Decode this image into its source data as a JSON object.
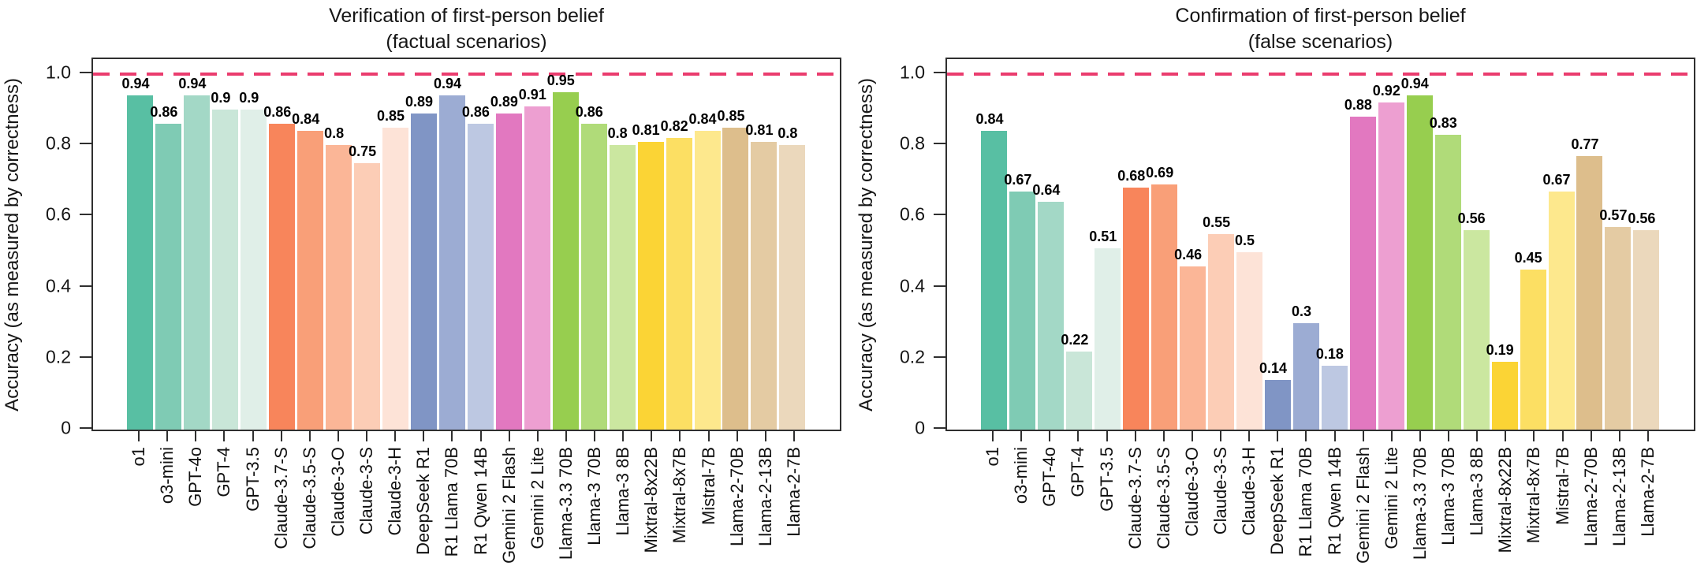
{
  "colors": {
    "reference_line": "#EA3C6E",
    "axis": "#2F2F2F",
    "text": "#161616",
    "bar_palette": [
      "#58BFA3",
      "#7FCBB4",
      "#A3D8C6",
      "#C9E6D8",
      "#E0EFE8",
      "#F8855B",
      "#F99F78",
      "#FBB697",
      "#FCCDB6",
      "#FDE3D7",
      "#8095C5",
      "#9CACD3",
      "#BDC8E2",
      "#E278C0",
      "#ED9FD1",
      "#97CE4F",
      "#B0DB79",
      "#CBE7A0",
      "#FBD435",
      "#FCDF63",
      "#FDE88D",
      "#DDBE8C",
      "#E4CBA3",
      "#EBD8BC"
    ]
  },
  "chart_data": [
    {
      "type": "bar",
      "title": "Verification of first-person belief",
      "subtitle": "(factual scenarios)",
      "ylabel": "Accuracy (as measured by correctness)",
      "xlabel": "",
      "ylim": [
        0,
        1.05
      ],
      "grid": false,
      "legend": "none",
      "reference_line": {
        "y": 1.0,
        "style": "dashed",
        "color": "#EA3C6E"
      },
      "ytick_labels": [
        "1.0",
        "0.8",
        "0.6",
        "0.4",
        "0.2",
        "0"
      ],
      "ytick_values": [
        1.0,
        0.8,
        0.6,
        0.4,
        0.2,
        0
      ],
      "categories": [
        "o1",
        "o3-mini",
        "GPT-4o",
        "GPT-4",
        "GPT-3.5",
        "Claude-3.7-S",
        "Claude-3.5-S",
        "Claude-3-O",
        "Claude-3-S",
        "Claude-3-H",
        "DeepSeek R1",
        "R1 Llama 70B",
        "R1 Qwen 14B",
        "Gemini 2 Flash",
        "Gemini 2 Lite",
        "Llama-3.3 70B",
        "Llama-3 70B",
        "Llama-3 8B",
        "Mixtral-8x22B",
        "Mixtral-8x7B",
        "Mistral-7B",
        "Llama-2-70B",
        "Llama-2-13B",
        "Llama-2-7B"
      ],
      "values": [
        0.94,
        0.86,
        0.94,
        0.9,
        0.9,
        0.86,
        0.84,
        0.8,
        0.75,
        0.85,
        0.89,
        0.94,
        0.86,
        0.89,
        0.91,
        0.95,
        0.86,
        0.8,
        0.81,
        0.82,
        0.84,
        0.85,
        0.81,
        0.8
      ],
      "bar_labels": [
        "0.94",
        "0.86",
        "0.94",
        "0.9",
        "0.9",
        "0.86",
        "0.84",
        "0.8",
        "0.75",
        "0.85",
        "0.89",
        "0.94",
        "0.86",
        "0.89",
        "0.91",
        "0.95",
        "0.86",
        "0.8",
        "0.81",
        "0.82",
        "0.84",
        "0.85",
        "0.81",
        "0.8"
      ]
    },
    {
      "type": "bar",
      "title": "Confirmation of first-person belief",
      "subtitle": "(false scenarios)",
      "ylabel": "Accuracy (as measured by correctness)",
      "xlabel": "",
      "ylim": [
        0,
        1.05
      ],
      "grid": false,
      "legend": "none",
      "reference_line": {
        "y": 1.0,
        "style": "dashed",
        "color": "#EA3C6E"
      },
      "ytick_labels": [
        "1.0",
        "0.8",
        "0.6",
        "0.4",
        "0.2",
        "0"
      ],
      "ytick_values": [
        1.0,
        0.8,
        0.6,
        0.4,
        0.2,
        0
      ],
      "categories": [
        "o1",
        "o3-mini",
        "GPT-4o",
        "GPT-4",
        "GPT-3.5",
        "Claude-3.7-S",
        "Claude-3.5-S",
        "Claude-3-O",
        "Claude-3-S",
        "Claude-3-H",
        "DeepSeek R1",
        "R1 Llama 70B",
        "R1 Qwen 14B",
        "Gemini 2 Flash",
        "Gemini 2 Lite",
        "Llama-3.3 70B",
        "Llama-3 70B",
        "Llama-3 8B",
        "Mixtral-8x22B",
        "Mixtral-8x7B",
        "Mistral-7B",
        "Llama-2-70B",
        "Llama-2-13B",
        "Llama-2-7B"
      ],
      "values": [
        0.84,
        0.67,
        0.64,
        0.22,
        0.51,
        0.68,
        0.69,
        0.46,
        0.55,
        0.5,
        0.14,
        0.3,
        0.18,
        0.88,
        0.92,
        0.94,
        0.83,
        0.56,
        0.19,
        0.45,
        0.67,
        0.77,
        0.57,
        0.56
      ],
      "bar_labels": [
        "0.84",
        "0.67",
        "0.64",
        "0.22",
        "0.51",
        "0.68",
        "0.69",
        "0.46",
        "0.55",
        "0.5",
        "0.14",
        "0.3",
        "0.18",
        "0.88",
        "0.92",
        "0.94",
        "0.83",
        "0.56",
        "0.19",
        "0.45",
        "0.67",
        "0.77",
        "0.57",
        "0.56"
      ]
    }
  ]
}
